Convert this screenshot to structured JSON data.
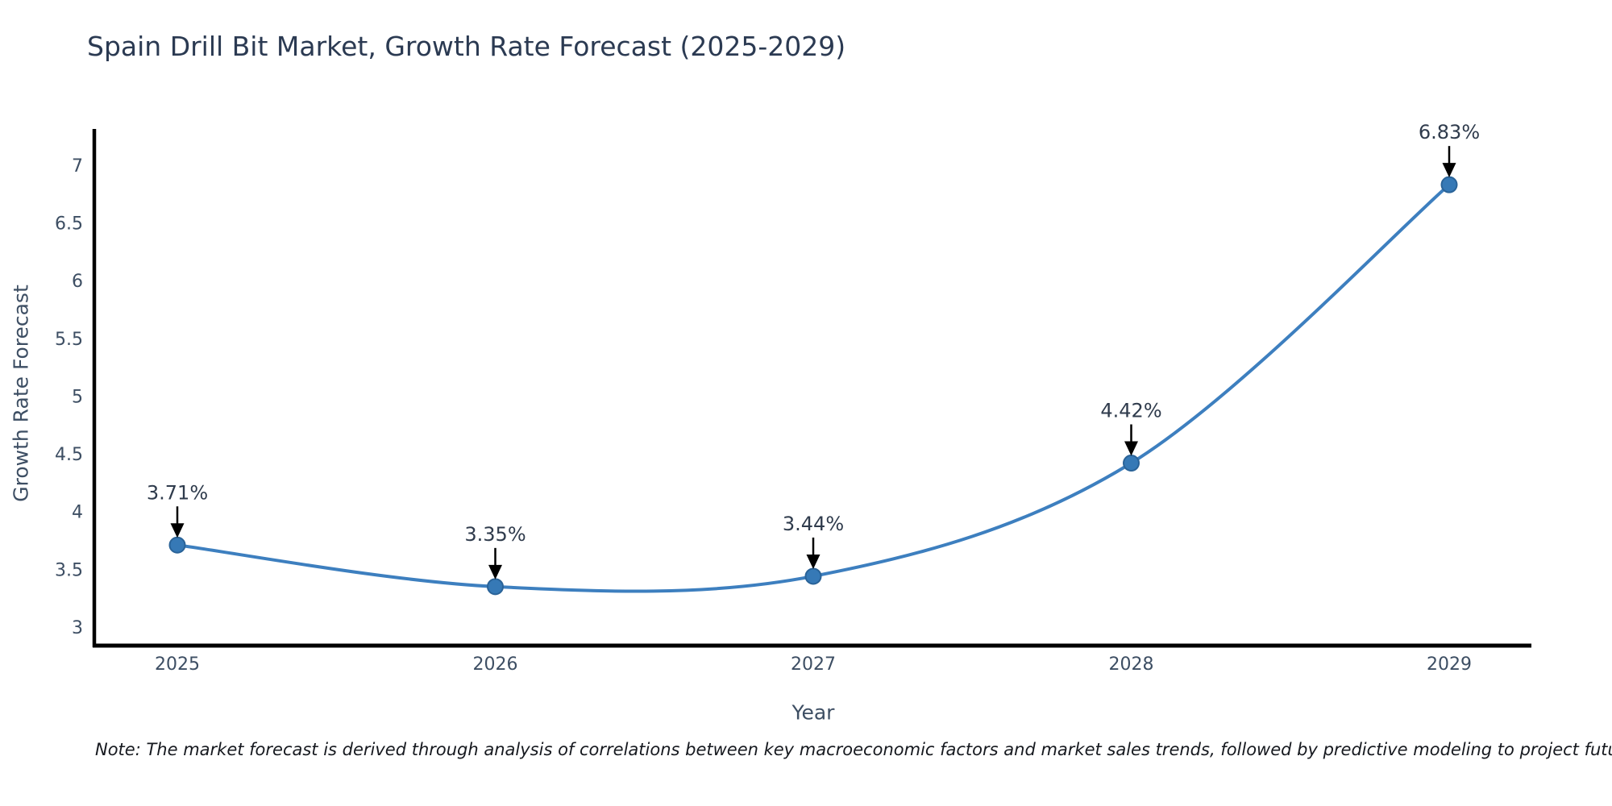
{
  "title": "Spain Drill Bit Market, Growth Rate Forecast (2025-2029)",
  "note": "Note: The market forecast is derived through analysis of correlations between key macroeconomic factors and market sales trends, followed by predictive modeling to project future sales",
  "chart_data": {
    "type": "line",
    "title": "Spain Drill Bit Market, Growth Rate Forecast (2025-2029)",
    "xlabel": "Year",
    "ylabel": "Growth Rate Forecast",
    "categories": [
      2025,
      2026,
      2027,
      2028,
      2029
    ],
    "x_tick_labels": [
      "2025",
      "2026",
      "2027",
      "2028",
      "2029"
    ],
    "values": [
      3.71,
      3.35,
      3.44,
      4.42,
      6.83
    ],
    "point_labels": [
      "3.71%",
      "3.35%",
      "3.44%",
      "4.42%",
      "6.83%"
    ],
    "y_ticks": [
      3,
      3.5,
      4,
      4.5,
      5,
      5.5,
      6,
      6.5,
      7
    ],
    "y_tick_labels": [
      "3",
      "3.5",
      "4",
      "4.5",
      "5",
      "5.5",
      "6",
      "6.5",
      "7"
    ],
    "ylim": [
      2.84,
      7.31
    ],
    "grid": false,
    "legend": "none",
    "curve": "smooth-spline",
    "annotation_style": "label-with-down-arrow",
    "colors": {
      "line": "#3d7fbf",
      "marker_fill": "#3679b6",
      "marker_edge": "#2a6398",
      "axis_line": "#000000",
      "tick_label": "#3d4e63",
      "axis_title": "#3d4e63",
      "chart_title": "#2b3a52",
      "data_label": "#2f3b4c",
      "arrow": "#000000",
      "background": "#ffffff"
    }
  }
}
